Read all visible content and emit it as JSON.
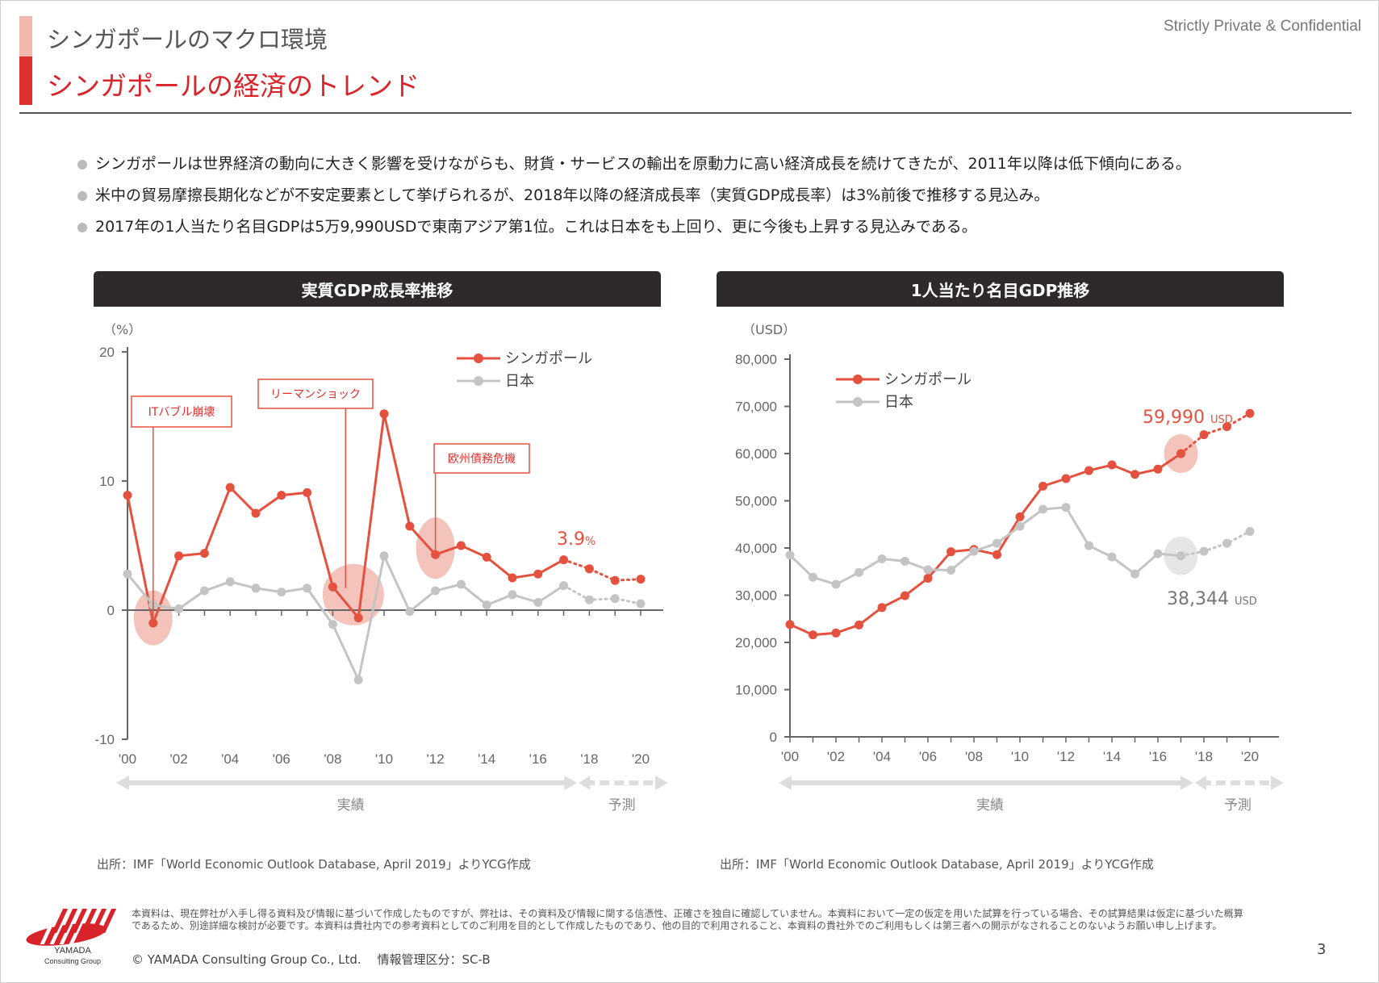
{
  "header": {
    "subtitle": "シンガポールのマクロ環境",
    "title": "シンガポールの経済のトレンド",
    "confidential": "Strictly Private & Confidential"
  },
  "bullets": [
    "シンガポールは世界経済の動向に大きく影響を受けながらも、財貨・サービスの輸出を原動力に高い経済成長を続けてきたが、2011年以降は低下傾向にある。",
    "米中の貿易摩擦長期化などが不安定要素として挙げられるが、2018年以降の経済成長率（実質GDP成長率）は3%前後で推移する見込み。",
    "2017年の1人当たり名目GDPは5万9,990USDで東南アジア第1位。これは日本をも上回り、更に今後も上昇する見込みである。"
  ],
  "colors": {
    "singapore": "#e5513f",
    "japan": "#c4c4c4",
    "highlight": "#f4c3bb",
    "highlight_gray": "#e6e6e6"
  },
  "chart_data": [
    {
      "type": "line",
      "title": "実質GDP成長率推移",
      "ylabel": "（%）",
      "ylim": [
        -10,
        20
      ],
      "yticks": [
        -10,
        0,
        10,
        20
      ],
      "x": [
        2000,
        2001,
        2002,
        2003,
        2004,
        2005,
        2006,
        2007,
        2008,
        2009,
        2010,
        2011,
        2012,
        2013,
        2014,
        2015,
        2016,
        2017,
        2018,
        2019,
        2020
      ],
      "xtick_labels": [
        "'00",
        "'02",
        "'04",
        "'06",
        "'08",
        "'10",
        "'12",
        "'14",
        "'16",
        "'18",
        "'20"
      ],
      "forecast_start": 2017,
      "series": [
        {
          "name": "シンガポール",
          "values": [
            8.9,
            -1.0,
            4.2,
            4.4,
            9.5,
            7.5,
            8.9,
            9.1,
            1.8,
            -0.6,
            15.2,
            6.5,
            4.3,
            5.0,
            4.1,
            2.5,
            2.8,
            3.9,
            3.2,
            2.3,
            2.4
          ]
        },
        {
          "name": "日本",
          "values": [
            2.8,
            0.4,
            0.1,
            1.5,
            2.2,
            1.7,
            1.4,
            1.7,
            -1.1,
            -5.4,
            4.2,
            -0.1,
            1.5,
            2.0,
            0.4,
            1.2,
            0.6,
            1.9,
            0.8,
            0.9,
            0.5
          ]
        }
      ],
      "annotations": [
        {
          "label": "ITバブル崩壊",
          "year": 2001
        },
        {
          "label": "リーマンショック",
          "year": 2008.5
        },
        {
          "label": "欧州債務危機",
          "year": 2012
        }
      ],
      "callout": {
        "value": "3.9",
        "unit": "%"
      },
      "periods": {
        "actual": "実績",
        "forecast": "予測"
      },
      "source": "出所：IMF「World Economic Outlook Database, April 2019」よりYCG作成"
    },
    {
      "type": "line",
      "title": "1人当たり名目GDP推移",
      "ylabel": "（USD）",
      "ylim": [
        0,
        80000
      ],
      "ytick_labels": [
        "0",
        "10,000",
        "20,000",
        "30,000",
        "40,000",
        "50,000",
        "60,000",
        "70,000",
        "80,000"
      ],
      "x": [
        2000,
        2001,
        2002,
        2003,
        2004,
        2005,
        2006,
        2007,
        2008,
        2009,
        2010,
        2011,
        2012,
        2013,
        2014,
        2015,
        2016,
        2017,
        2018,
        2019,
        2020
      ],
      "xtick_labels": [
        "'00",
        "'02",
        "'04",
        "'06",
        "'08",
        "'10",
        "'12",
        "'14",
        "'16",
        "'18",
        "'20"
      ],
      "forecast_start": 2017,
      "series": [
        {
          "name": "シンガポール",
          "values": [
            23800,
            21600,
            22000,
            23700,
            27400,
            29900,
            33600,
            39200,
            39700,
            38600,
            46600,
            53100,
            54700,
            56400,
            57600,
            55600,
            56700,
            59990,
            64000,
            65700,
            68500
          ]
        },
        {
          "name": "日本",
          "values": [
            38500,
            33800,
            32300,
            34800,
            37700,
            37200,
            35400,
            35300,
            39300,
            41000,
            44600,
            48200,
            48600,
            40500,
            38100,
            34500,
            38800,
            38344,
            39300,
            41000,
            43500
          ]
        }
      ],
      "callouts": [
        {
          "value": "59,990",
          "unit": "USD",
          "series": "シンガポール"
        },
        {
          "value": "38,344",
          "unit": "USD",
          "series": "日本"
        }
      ],
      "periods": {
        "actual": "実績",
        "forecast": "予測"
      },
      "source": "出所：IMF「World Economic Outlook Database, April 2019」よりYCG作成"
    }
  ],
  "footer": {
    "disclaimer": "本資料は、現在弊社が入手し得る資料及び情報に基づいて作成したものですが、弊社は、その資料及び情報に関する信憑性、正確さを独自に確認していません。本資料において一定の仮定を用いた試算を行っている場合、その試算結果は仮定に基づいた概算であるため、別途詳細な検討が必要です。本資料は貴社内での参考資料としてのご利用を目的として作成したものであり、他の目的で利用されること、本資料の貴社外でのご利用もしくは第三者への開示がなされることのないようお願い申し上げます。",
    "copyright": "©  YAMADA Consulting  Group  Co., Ltd.　 情報管理区分：SC-B",
    "logo_line1": "YAMADA",
    "logo_line2": "Consulting Group",
    "page_number": "3"
  }
}
